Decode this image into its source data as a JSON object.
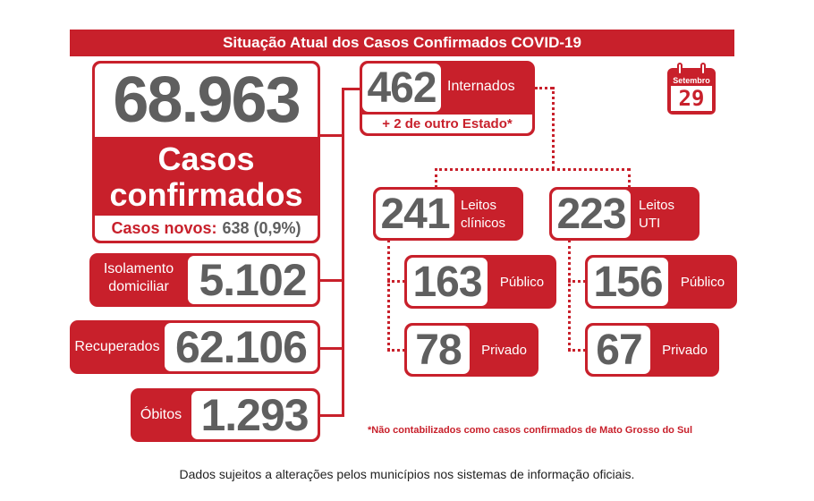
{
  "header": {
    "title": "Situação Atual dos Casos Confirmados COVID-19"
  },
  "calendar": {
    "month": "Setembro",
    "day": "29"
  },
  "cases": {
    "total": "68.963",
    "label_line1": "Casos",
    "label_line2": "confirmados",
    "new_label": "Casos novos:",
    "new_value": "638 (0,9%)"
  },
  "isolation": {
    "label_line1": "Isolamento",
    "label_line2": "domiciliar",
    "value": "5.102"
  },
  "recovered": {
    "label": "Recuperados",
    "value": "62.106"
  },
  "deaths": {
    "label": "Óbitos",
    "value": "1.293"
  },
  "hospitalized": {
    "value": "462",
    "label": "Internados",
    "note": "+ 2 de outro Estado*"
  },
  "clinical": {
    "value": "241",
    "label_line1": "Leitos",
    "label_line2": "clínicos",
    "public": {
      "value": "163",
      "label": "Público"
    },
    "private": {
      "value": "78",
      "label": "Privado"
    }
  },
  "icu": {
    "value": "223",
    "label_line1": "Leitos",
    "label_line2": "UTI",
    "public": {
      "value": "156",
      "label": "Público"
    },
    "private": {
      "value": "67",
      "label": "Privado"
    }
  },
  "footnote": "*Não contabilizados como casos confirmados de Mato Grosso do Sul",
  "disclaimer": "Dados sujeitos a alterações pelos municípios nos sistemas de informação oficiais.",
  "colors": {
    "accent": "#c8202b",
    "number": "#5f5f5f"
  }
}
